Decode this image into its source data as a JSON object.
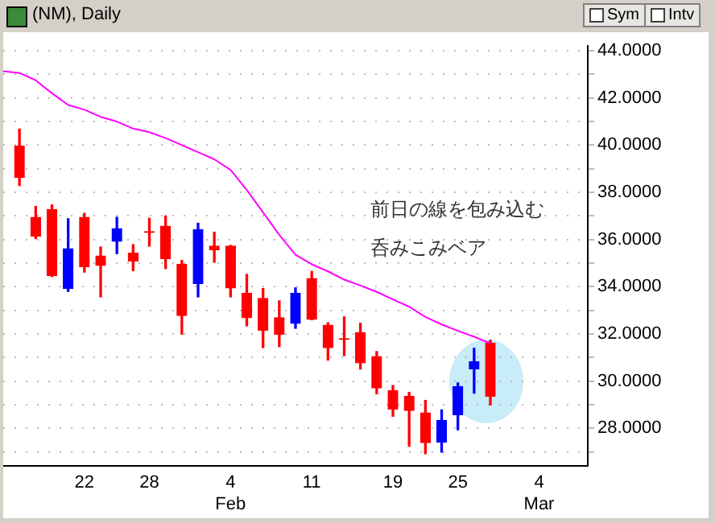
{
  "chart_data": {
    "type": "candlestick",
    "title": "(NM), Daily",
    "categories": [
      null,
      null,
      null,
      null,
      null,
      "22",
      null,
      null,
      null,
      "28",
      null,
      null,
      null,
      null,
      "4\nFeb",
      null,
      null,
      null,
      null,
      "11",
      null,
      null,
      null,
      null,
      "19",
      null,
      null,
      null,
      "25",
      null,
      null,
      null,
      null,
      "4\nMar",
      null,
      null,
      null
    ],
    "ohlc": [
      null,
      [
        39.96,
        40.68,
        38.29,
        38.63
      ],
      [
        36.94,
        37.4,
        36.04,
        36.14
      ],
      [
        37.26,
        37.47,
        34.43,
        34.47
      ],
      [
        33.92,
        36.88,
        33.8,
        35.61
      ],
      [
        36.94,
        37.11,
        34.62,
        34.84
      ],
      [
        35.3,
        35.68,
        33.57,
        34.9
      ],
      [
        35.93,
        36.94,
        35.4,
        36.46
      ],
      [
        35.42,
        35.78,
        34.68,
        35.09
      ],
      [
        36.33,
        36.9,
        35.72,
        36.3
      ],
      [
        36.56,
        37.0,
        34.77,
        35.19
      ],
      [
        34.94,
        35.11,
        31.99,
        32.78
      ],
      [
        34.14,
        36.69,
        33.57,
        36.42
      ],
      [
        35.72,
        36.31,
        35.04,
        35.57
      ],
      [
        35.72,
        35.75,
        33.57,
        33.95
      ],
      [
        33.72,
        34.52,
        32.34,
        32.69
      ],
      [
        33.5,
        33.92,
        31.42,
        32.15
      ],
      [
        32.68,
        33.4,
        31.46,
        31.99
      ],
      [
        32.45,
        33.95,
        32.24,
        33.72
      ],
      [
        34.35,
        34.65,
        32.6,
        32.62
      ],
      [
        32.37,
        32.47,
        30.89,
        31.42
      ],
      [
        31.8,
        32.72,
        31.08,
        31.77
      ],
      [
        32.05,
        32.45,
        30.51,
        30.78
      ],
      [
        31.04,
        31.25,
        29.46,
        29.71
      ],
      [
        29.6,
        29.81,
        28.51,
        28.82
      ],
      [
        29.35,
        29.52,
        27.24,
        28.76
      ],
      [
        28.65,
        29.18,
        26.92,
        27.39
      ],
      [
        27.41,
        28.78,
        26.99,
        28.34
      ],
      [
        28.57,
        29.92,
        27.94,
        29.77
      ],
      [
        30.51,
        31.39,
        29.49,
        30.82
      ],
      [
        31.6,
        31.73,
        28.99,
        29.35
      ],
      null,
      null,
      null,
      null,
      null,
      null
    ],
    "colors": [
      null,
      "#ff0000",
      "#ff0000",
      "#ff0000",
      "#0000ff",
      "#ff0000",
      "#ff0000",
      "#0000ff",
      "#ff0000",
      "#ff0000",
      "#ff0000",
      "#ff0000",
      "#0000ff",
      "#ff0000",
      "#ff0000",
      "#ff0000",
      "#ff0000",
      "#ff0000",
      "#0000ff",
      "#ff0000",
      "#ff0000",
      "#ff0000",
      "#ff0000",
      "#ff0000",
      "#ff0000",
      "#ff0000",
      "#ff0000",
      "#0000ff",
      "#0000ff",
      "#0000ff",
      "#ff0000",
      null,
      null,
      null,
      null,
      null,
      null
    ],
    "series": [
      {
        "type": "line",
        "color": "#ff00ff",
        "values": [
          43.13,
          43.06,
          42.75,
          42.2,
          41.7,
          41.5,
          41.2,
          41.0,
          40.7,
          40.55,
          40.3,
          40.0,
          39.7,
          39.4,
          38.95,
          38.1,
          37.15,
          36.2,
          35.35,
          34.95,
          34.65,
          34.3,
          34.05,
          33.78,
          33.46,
          33.15,
          32.72,
          32.4,
          32.13,
          31.88,
          31.6,
          null,
          null,
          null,
          null,
          null,
          null
        ]
      }
    ],
    "ylim": [
      26.4,
      44.2
    ],
    "yticks": [
      {
        "value": 27,
        "label": null
      },
      {
        "value": 28,
        "label": "28.0000"
      },
      {
        "value": 29,
        "label": null
      },
      {
        "value": 30,
        "label": "30.0000"
      },
      {
        "value": 31,
        "label": null
      },
      {
        "value": 32,
        "label": "32.0000"
      },
      {
        "value": 33,
        "label": null
      },
      {
        "value": 34,
        "label": "34.0000"
      },
      {
        "value": 35,
        "label": null
      },
      {
        "value": 36,
        "label": "36.0000"
      },
      {
        "value": 37,
        "label": null
      },
      {
        "value": 38,
        "label": "38.0000"
      },
      {
        "value": 39,
        "label": null
      },
      {
        "value": 40,
        "label": "40.0000"
      },
      {
        "value": 41,
        "label": null
      },
      {
        "value": 42,
        "label": "42.0000"
      },
      {
        "value": 43,
        "label": null
      },
      {
        "value": 44,
        "label": "44.0000"
      }
    ],
    "grid": "y",
    "annotations": [
      "前日の線を包み込む",
      "呑みこみベア",
      "Sym",
      "Intv"
    ]
  }
}
